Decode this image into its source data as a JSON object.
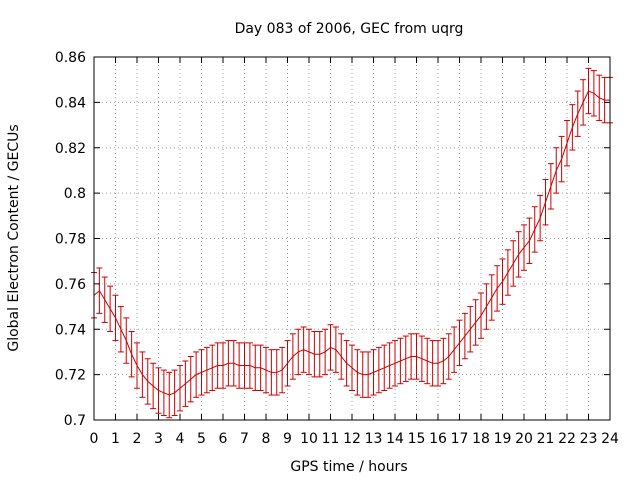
{
  "chart_data": {
    "type": "line",
    "title": "Day 083 of 2006, GEC from uqrg",
    "xlabel": "GPS time / hours",
    "ylabel": "Global Electron Content / GECUs",
    "xlim": [
      0,
      24
    ],
    "ylim": [
      0.7,
      0.86
    ],
    "xticks": [
      0,
      1,
      2,
      3,
      4,
      5,
      6,
      7,
      8,
      9,
      10,
      11,
      12,
      13,
      14,
      15,
      16,
      17,
      18,
      19,
      20,
      21,
      22,
      23,
      24
    ],
    "yticks": [
      0.7,
      0.72,
      0.74,
      0.76,
      0.78,
      0.8,
      0.82,
      0.84,
      0.86
    ],
    "ytick_labels": [
      "0.7",
      "0.72",
      "0.74",
      "0.76",
      "0.78",
      "0.8",
      "0.82",
      "0.84",
      "0.86"
    ],
    "grid": true,
    "series_color": "#cc0000",
    "series": [
      {
        "name": "GEC",
        "x": [
          0,
          0.25,
          0.5,
          0.75,
          1,
          1.25,
          1.5,
          1.75,
          2,
          2.25,
          2.5,
          2.75,
          3,
          3.25,
          3.5,
          3.75,
          4,
          4.25,
          4.5,
          4.75,
          5,
          5.25,
          5.5,
          5.75,
          6,
          6.25,
          6.5,
          6.75,
          7,
          7.25,
          7.5,
          7.75,
          8,
          8.25,
          8.5,
          8.75,
          9,
          9.25,
          9.5,
          9.75,
          10,
          10.25,
          10.5,
          10.75,
          11,
          11.25,
          11.5,
          11.75,
          12,
          12.25,
          12.5,
          12.75,
          13,
          13.25,
          13.5,
          13.75,
          14,
          14.25,
          14.5,
          14.75,
          15,
          15.25,
          15.5,
          15.75,
          16,
          16.25,
          16.5,
          16.75,
          17,
          17.25,
          17.5,
          17.75,
          18,
          18.25,
          18.5,
          18.75,
          19,
          19.25,
          19.5,
          19.75,
          20,
          20.25,
          20.5,
          20.75,
          21,
          21.25,
          21.5,
          21.75,
          22,
          22.25,
          22.5,
          22.75,
          23,
          23.25,
          23.5,
          23.75,
          24
        ],
        "y": [
          0.755,
          0.757,
          0.753,
          0.749,
          0.745,
          0.74,
          0.735,
          0.729,
          0.724,
          0.72,
          0.717,
          0.715,
          0.713,
          0.712,
          0.711,
          0.712,
          0.714,
          0.716,
          0.718,
          0.72,
          0.721,
          0.722,
          0.723,
          0.724,
          0.724,
          0.725,
          0.725,
          0.724,
          0.724,
          0.724,
          0.723,
          0.723,
          0.722,
          0.721,
          0.721,
          0.722,
          0.725,
          0.728,
          0.73,
          0.731,
          0.73,
          0.729,
          0.729,
          0.73,
          0.732,
          0.731,
          0.728,
          0.725,
          0.723,
          0.721,
          0.72,
          0.72,
          0.721,
          0.722,
          0.723,
          0.724,
          0.725,
          0.726,
          0.727,
          0.728,
          0.728,
          0.727,
          0.726,
          0.725,
          0.725,
          0.726,
          0.728,
          0.731,
          0.734,
          0.737,
          0.74,
          0.743,
          0.746,
          0.75,
          0.754,
          0.758,
          0.761,
          0.765,
          0.769,
          0.773,
          0.776,
          0.779,
          0.784,
          0.789,
          0.796,
          0.803,
          0.81,
          0.815,
          0.822,
          0.829,
          0.835,
          0.84,
          0.845,
          0.844,
          0.842,
          0.841,
          0.841
        ],
        "err": 0.01
      }
    ]
  }
}
